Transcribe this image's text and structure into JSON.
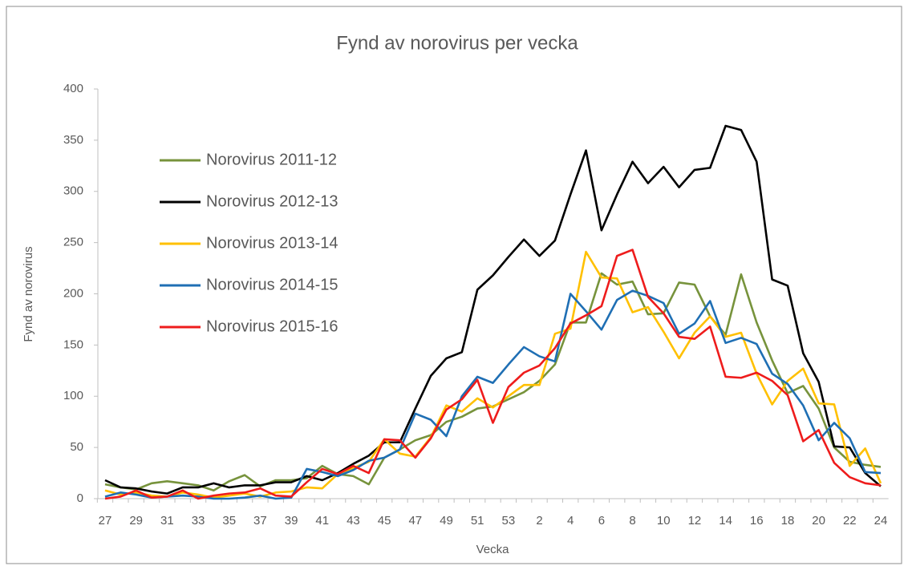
{
  "chart_data": {
    "type": "line",
    "title": "Fynd av norovirus per vecka",
    "xlabel": "Vecka",
    "ylabel": "Fynd av norovirus",
    "categories": [
      "27",
      null,
      "29",
      null,
      "31",
      null,
      "33",
      null,
      "35",
      null,
      "37",
      null,
      "39",
      null,
      "41",
      null,
      "43",
      null,
      "45",
      null,
      "47",
      null,
      "49",
      null,
      "51",
      null,
      "53",
      null,
      "2",
      null,
      "4",
      null,
      "6",
      null,
      "8",
      null,
      "10",
      null,
      "12",
      null,
      "14",
      null,
      "16",
      null,
      "18",
      null,
      "20",
      null,
      "22",
      null,
      "24"
    ],
    "ylim": [
      0,
      400
    ],
    "yticks": [
      0,
      50,
      100,
      150,
      200,
      250,
      300,
      350,
      400
    ],
    "grid": false,
    "legend": "upper left",
    "series": [
      {
        "name": "Norovirus 2011-12",
        "color": "#77933c",
        "values": [
          14,
          11,
          9,
          15,
          17,
          15,
          13,
          8,
          17,
          23,
          12,
          18,
          18,
          20,
          32,
          24,
          22,
          14,
          40,
          48,
          57,
          62,
          75,
          80,
          88,
          90,
          97,
          104,
          115,
          131,
          172,
          172,
          220,
          209,
          212,
          180,
          181,
          211,
          209,
          178,
          160,
          219,
          172,
          135,
          103,
          110,
          88,
          50,
          36,
          33,
          31
        ]
      },
      {
        "name": "Norovirus 2012-13",
        "color": "#000000",
        "values": [
          18,
          11,
          10,
          7,
          5,
          11,
          11,
          15,
          11,
          13,
          13,
          16,
          16,
          22,
          18,
          25,
          34,
          42,
          55,
          55,
          88,
          120,
          137,
          143,
          204,
          218,
          236,
          253,
          237,
          252,
          297,
          340,
          262,
          297,
          329,
          308,
          324,
          304,
          321,
          323,
          364,
          360,
          329,
          214,
          208,
          142,
          114,
          51,
          50,
          25,
          12
        ]
      },
      {
        "name": "Norovirus 2013-14",
        "color": "#ffc000",
        "values": [
          8,
          4,
          6,
          3,
          2,
          6,
          4,
          1,
          3,
          5,
          2,
          6,
          7,
          11,
          10,
          24,
          30,
          36,
          58,
          44,
          41,
          60,
          91,
          85,
          98,
          89,
          100,
          111,
          111,
          161,
          166,
          241,
          216,
          215,
          182,
          187,
          163,
          137,
          162,
          178,
          158,
          162,
          122,
          92,
          115,
          127,
          93,
          92,
          32,
          49,
          15
        ]
      },
      {
        "name": "Norovirus 2014-15",
        "color": "#1f6fb4",
        "values": [
          2,
          6,
          4,
          1,
          2,
          3,
          2,
          0,
          0,
          1,
          3,
          0,
          1,
          29,
          26,
          22,
          28,
          37,
          40,
          48,
          83,
          77,
          61,
          100,
          119,
          113,
          131,
          148,
          139,
          134,
          200,
          183,
          165,
          194,
          203,
          198,
          191,
          161,
          171,
          193,
          152,
          157,
          151,
          122,
          112,
          91,
          57,
          74,
          59,
          26,
          25
        ]
      },
      {
        "name": "Norovirus 2015-16",
        "color": "#ee1c1c",
        "values": [
          0,
          2,
          8,
          1,
          2,
          8,
          0,
          3,
          5,
          6,
          10,
          3,
          2,
          16,
          29,
          24,
          32,
          25,
          58,
          57,
          40,
          59,
          87,
          97,
          116,
          74,
          109,
          123,
          130,
          147,
          171,
          179,
          188,
          237,
          243,
          197,
          181,
          158,
          156,
          168,
          119,
          118,
          123,
          115,
          101,
          56,
          67,
          35,
          21,
          15,
          13
        ]
      }
    ]
  }
}
